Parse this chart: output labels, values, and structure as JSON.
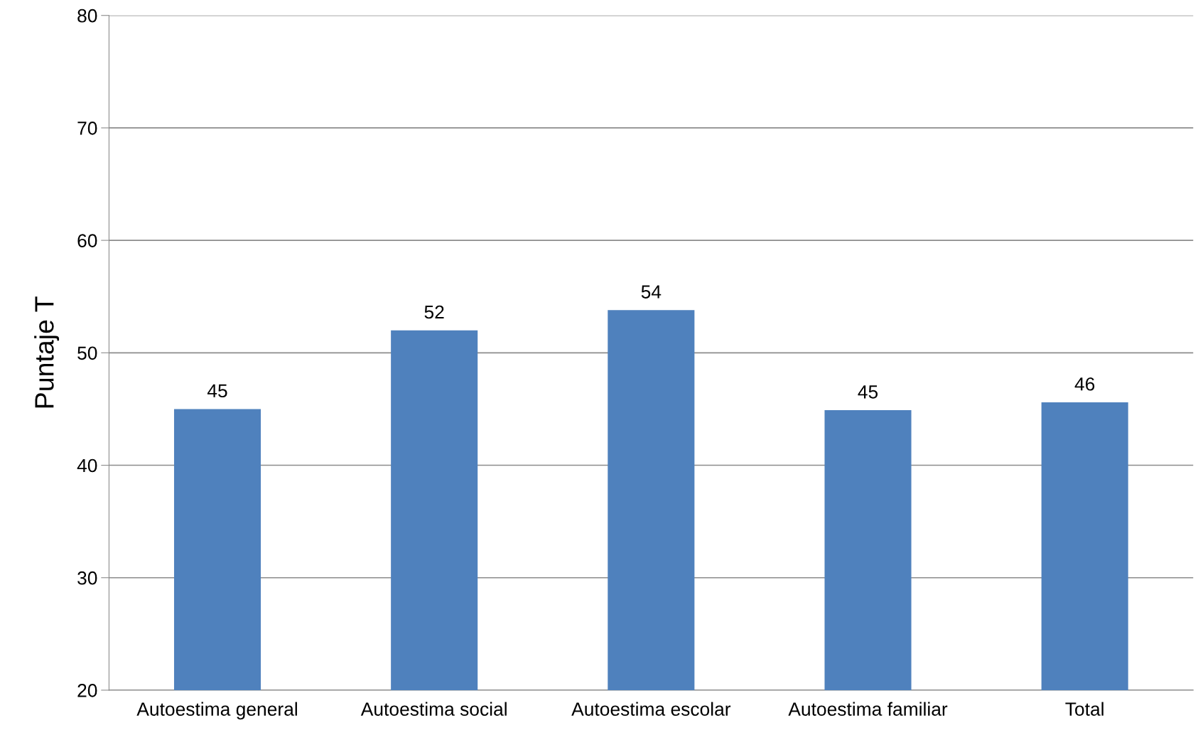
{
  "chart_data": {
    "type": "bar",
    "ylabel": "Puntaje T",
    "categories": [
      "Autoestima general",
      "Autoestima social",
      "Autoestima escolar",
      "Autoestima familiar",
      "Total"
    ],
    "values": [
      45,
      52,
      53.8,
      44.9,
      45.6
    ],
    "value_labels": [
      "45",
      "52",
      "54",
      "45",
      "46"
    ],
    "color": "#4f81bd",
    "ylim": [
      20,
      80
    ],
    "yticks": [
      20,
      30,
      40,
      50,
      60,
      70,
      80
    ],
    "grid": "y",
    "legend": false
  }
}
